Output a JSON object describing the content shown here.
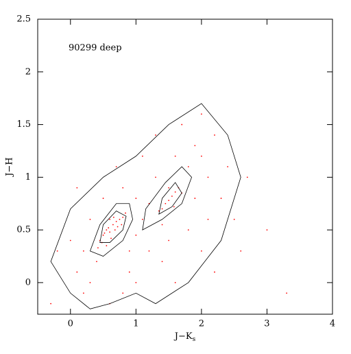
{
  "chart_data": {
    "type": "scatter",
    "annotation": "90299 deep",
    "x_label": "J−K",
    "x_label_subscript": "s",
    "y_label": "J−H",
    "xlim": [
      -0.5,
      4
    ],
    "ylim": [
      -0.3,
      2.5
    ],
    "xticks": [
      0,
      1,
      2,
      3,
      4
    ],
    "yticks": [
      0,
      0.5,
      1,
      1.5,
      2,
      2.5
    ],
    "point_color": "#ff0000",
    "contour_color": "#000000",
    "x": [
      0.5,
      0.55,
      0.6,
      0.65,
      0.7,
      0.62,
      0.48,
      0.75,
      0.8,
      0.58,
      0.52,
      0.68,
      0.45,
      0.72,
      0.6,
      0.78,
      0.55,
      0.42,
      0.66,
      0.84,
      1.4,
      1.5,
      1.55,
      1.6,
      1.45,
      1.65,
      1.7,
      1.35,
      1.5,
      1.58,
      0.2,
      0.1,
      0.3,
      0.9,
      1.0,
      1.1,
      1.2,
      1.0,
      1.3,
      1.8,
      2.0,
      2.1,
      1.9,
      2.2,
      1.6,
      0.8,
      0.5,
      0.3,
      0.0,
      -0.2,
      0.2,
      0.6,
      1.0,
      1.4,
      1.8,
      2.3,
      2.5,
      2.0,
      1.2,
      0.9,
      1.5,
      1.1,
      0.7,
      2.4,
      2.7,
      1.7,
      2.0,
      1.3,
      0.4,
      0.8,
      1.6,
      2.2,
      2.6,
      3.0,
      3.3,
      -0.3,
      0.1,
      1.9,
      1.4,
      2.1
    ],
    "y": [
      0.45,
      0.5,
      0.48,
      0.55,
      0.58,
      0.42,
      0.38,
      0.6,
      0.62,
      0.52,
      0.47,
      0.5,
      0.4,
      0.53,
      0.6,
      0.55,
      0.35,
      0.33,
      0.62,
      0.66,
      0.7,
      0.78,
      0.82,
      0.86,
      0.75,
      0.9,
      0.85,
      0.68,
      0.9,
      0.72,
      0.3,
      0.1,
      0.0,
      0.3,
      0.45,
      0.6,
      0.75,
      0.8,
      1.0,
      1.1,
      1.2,
      1.0,
      1.3,
      1.4,
      1.2,
      0.9,
      0.8,
      0.6,
      0.4,
      0.3,
      -0.1,
      -0.2,
      0.0,
      0.2,
      0.5,
      0.8,
      0.6,
      0.3,
      0.3,
      0.1,
      0.4,
      1.2,
      1.1,
      1.1,
      1.0,
      1.5,
      1.6,
      1.4,
      0.2,
      -0.1,
      0.0,
      0.1,
      0.3,
      0.5,
      -0.1,
      -0.2,
      0.9,
      0.8,
      0.55,
      0.6
    ],
    "contours": [
      {
        "x": [
          -0.3,
          0.0,
          0.3,
          0.6,
          1.0,
          1.3,
          1.8,
          2.3,
          2.6,
          2.4,
          2.0,
          1.5,
          1.0,
          0.5,
          0.0
        ],
        "y": [
          0.2,
          -0.1,
          -0.25,
          -0.2,
          -0.1,
          -0.2,
          0.0,
          0.4,
          1.0,
          1.4,
          1.7,
          1.5,
          1.2,
          1.0,
          0.7
        ]
      },
      {
        "x": [
          0.3,
          0.5,
          0.8,
          0.95,
          0.9,
          0.7,
          0.45
        ],
        "y": [
          0.3,
          0.25,
          0.4,
          0.6,
          0.75,
          0.75,
          0.55
        ]
      },
      {
        "x": [
          0.45,
          0.6,
          0.8,
          0.85,
          0.7,
          0.5
        ],
        "y": [
          0.38,
          0.38,
          0.5,
          0.63,
          0.68,
          0.55
        ]
      },
      {
        "x": [
          1.1,
          1.4,
          1.7,
          1.85,
          1.7,
          1.45,
          1.15
        ],
        "y": [
          0.5,
          0.6,
          0.75,
          1.0,
          1.1,
          0.95,
          0.7
        ]
      },
      {
        "x": [
          1.35,
          1.55,
          1.7,
          1.6,
          1.4
        ],
        "y": [
          0.65,
          0.72,
          0.85,
          0.95,
          0.8
        ]
      }
    ]
  }
}
